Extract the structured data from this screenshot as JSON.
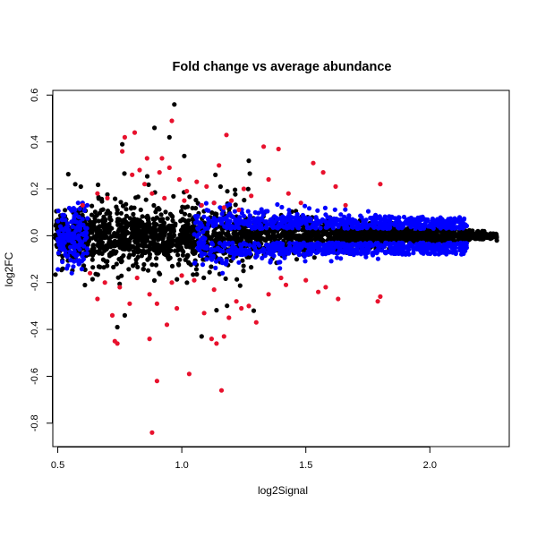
{
  "chart_data": {
    "type": "scatter",
    "title": "Fold change vs average abundance",
    "xlabel": "log2Signal",
    "ylabel": "log2FC",
    "xlim": [
      0.48,
      2.32
    ],
    "ylim": [
      -0.9,
      0.62
    ],
    "xticks": [
      0.5,
      1.0,
      1.5,
      2.0
    ],
    "xtick_labels": [
      "0.5",
      "1.0",
      "1.5",
      "2.0"
    ],
    "yticks": [
      -0.8,
      -0.6,
      -0.4,
      -0.2,
      0.0,
      0.2,
      0.4,
      0.6
    ],
    "ytick_labels": [
      "-0.8",
      "-0.6",
      "-0.4",
      "-0.2",
      "0.0",
      "0.2",
      "0.4",
      "0.6"
    ],
    "grid": false,
    "colors": {
      "background_points": "#000000",
      "significant_points": "#e8112d",
      "highlighted_points": "#0000ff"
    },
    "series": [
      {
        "color": "#e8112d",
        "points": [
          [
            0.77,
            0.42
          ],
          [
            0.81,
            0.44
          ],
          [
            0.96,
            0.49
          ],
          [
            1.18,
            0.43
          ],
          [
            0.76,
            0.36
          ],
          [
            0.86,
            0.33
          ],
          [
            0.92,
            0.33
          ],
          [
            0.95,
            0.29
          ],
          [
            0.99,
            0.24
          ],
          [
            1.06,
            0.23
          ],
          [
            0.85,
            0.22
          ],
          [
            0.88,
            0.18
          ],
          [
            0.93,
            0.16
          ],
          [
            1.01,
            0.15
          ],
          [
            1.08,
            0.13
          ],
          [
            1.13,
            0.14
          ],
          [
            1.17,
            0.12
          ],
          [
            1.25,
            0.2
          ],
          [
            1.33,
            0.38
          ],
          [
            1.39,
            0.37
          ],
          [
            1.53,
            0.31
          ],
          [
            1.57,
            0.27
          ],
          [
            1.62,
            0.21
          ],
          [
            1.8,
            0.22
          ],
          [
            1.2,
            0.15
          ],
          [
            1.28,
            0.17
          ],
          [
            1.1,
            0.21
          ],
          [
            0.8,
            0.26
          ],
          [
            0.83,
            0.28
          ],
          [
            1.35,
            0.24
          ],
          [
            1.43,
            0.18
          ],
          [
            1.48,
            0.14
          ],
          [
            0.7,
            0.16
          ],
          [
            0.66,
            0.18
          ],
          [
            1.02,
            0.19
          ],
          [
            0.91,
            0.27
          ],
          [
            1.15,
            0.3
          ],
          [
            0.6,
            0.13
          ],
          [
            1.23,
            0.11
          ],
          [
            1.66,
            0.13
          ],
          [
            0.63,
            -0.16
          ],
          [
            0.69,
            -0.2
          ],
          [
            0.75,
            -0.22
          ],
          [
            0.82,
            -0.18
          ],
          [
            0.87,
            -0.25
          ],
          [
            0.9,
            -0.29
          ],
          [
            0.96,
            -0.2
          ],
          [
            1.0,
            -0.17
          ],
          [
            1.05,
            -0.19
          ],
          [
            1.13,
            -0.23
          ],
          [
            1.22,
            -0.28
          ],
          [
            1.27,
            -0.3
          ],
          [
            1.3,
            -0.37
          ],
          [
            1.35,
            -0.25
          ],
          [
            1.42,
            -0.21
          ],
          [
            1.5,
            -0.19
          ],
          [
            1.58,
            -0.22
          ],
          [
            1.63,
            -0.27
          ],
          [
            1.79,
            -0.28
          ],
          [
            1.8,
            -0.26
          ],
          [
            0.73,
            -0.45
          ],
          [
            0.74,
            -0.46
          ],
          [
            0.87,
            -0.44
          ],
          [
            0.88,
            -0.84
          ],
          [
            0.9,
            -0.62
          ],
          [
            1.03,
            -0.59
          ],
          [
            1.16,
            -0.66
          ],
          [
            1.12,
            -0.44
          ],
          [
            1.14,
            -0.46
          ],
          [
            1.17,
            -0.43
          ],
          [
            0.94,
            -0.38
          ],
          [
            0.72,
            -0.34
          ],
          [
            0.79,
            -0.29
          ],
          [
            1.09,
            -0.33
          ],
          [
            1.19,
            -0.35
          ],
          [
            0.98,
            -0.31
          ],
          [
            1.4,
            -0.18
          ],
          [
            1.55,
            -0.24
          ],
          [
            0.66,
            -0.27
          ],
          [
            1.24,
            -0.31
          ]
        ]
      }
    ]
  }
}
